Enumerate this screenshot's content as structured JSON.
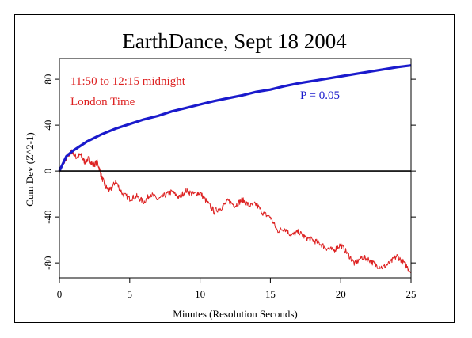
{
  "chart_data": {
    "type": "line",
    "title": "EarthDance, Sept 18 2004",
    "xlabel": "Minutes (Resolution Seconds)",
    "ylabel": "Cum Dev (Z^2-1)",
    "xlim": [
      0,
      25
    ],
    "ylim": [
      -93,
      98
    ],
    "x_ticks": [
      0,
      5,
      10,
      15,
      20,
      25
    ],
    "y_ticks": [
      -80,
      -40,
      0,
      40,
      80
    ],
    "grid": false,
    "annotations": [
      {
        "text": "11:50 to 12:15 midnight",
        "color": "#dd2222"
      },
      {
        "text": "London Time",
        "color": "#dd2222"
      },
      {
        "text": "P = 0.05",
        "color": "#1a1acc"
      }
    ],
    "series": [
      {
        "color": "#dd2222",
        "style": "noisy",
        "x": [
          0,
          0.3,
          0.6,
          0.9,
          1.2,
          1.5,
          1.8,
          2.1,
          2.4,
          2.7,
          3.0,
          3.3,
          3.6,
          4.0,
          4.5,
          5.0,
          5.5,
          6.0,
          6.5,
          7.0,
          7.5,
          8.0,
          8.5,
          9.0,
          9.5,
          10.0,
          10.5,
          11.0,
          11.5,
          12.0,
          12.5,
          13.0,
          13.5,
          14.0,
          14.5,
          15.0,
          15.5,
          16.0,
          16.5,
          17.0,
          17.5,
          18.0,
          18.5,
          19.0,
          19.5,
          20.0,
          20.5,
          21.0,
          21.5,
          22.0,
          22.5,
          23.0,
          23.5,
          24.0,
          24.5,
          25.0
        ],
        "y": [
          0,
          8,
          13,
          17,
          12,
          14,
          8,
          11,
          5,
          8,
          -5,
          -14,
          -17,
          -9,
          -20,
          -24,
          -22,
          -27,
          -20,
          -25,
          -21,
          -18,
          -23,
          -17,
          -20,
          -19,
          -27,
          -35,
          -32,
          -26,
          -30,
          -25,
          -30,
          -29,
          -37,
          -40,
          -52,
          -50,
          -56,
          -53,
          -58,
          -60,
          -63,
          -67,
          -69,
          -64,
          -72,
          -81,
          -75,
          -77,
          -82,
          -84,
          -80,
          -74,
          -80,
          -88
        ]
      },
      {
        "color": "#1a1acc",
        "style": "smooth",
        "x": [
          0,
          0.5,
          1,
          2,
          3,
          4,
          5,
          6,
          7,
          8,
          9,
          10,
          11,
          12,
          13,
          14,
          15,
          16,
          17,
          18,
          19,
          20,
          21,
          22,
          23,
          24,
          25
        ],
        "y": [
          0,
          13,
          18,
          26,
          32,
          37,
          41,
          45,
          48,
          52,
          55,
          58,
          61,
          63.5,
          66,
          69,
          71,
          74,
          76.5,
          78.5,
          80.5,
          82.5,
          84.5,
          86.5,
          88.5,
          90.5,
          92
        ]
      },
      {
        "color": "#000000",
        "style": "flat",
        "x": [
          0,
          25
        ],
        "y": [
          0,
          0
        ]
      }
    ]
  }
}
